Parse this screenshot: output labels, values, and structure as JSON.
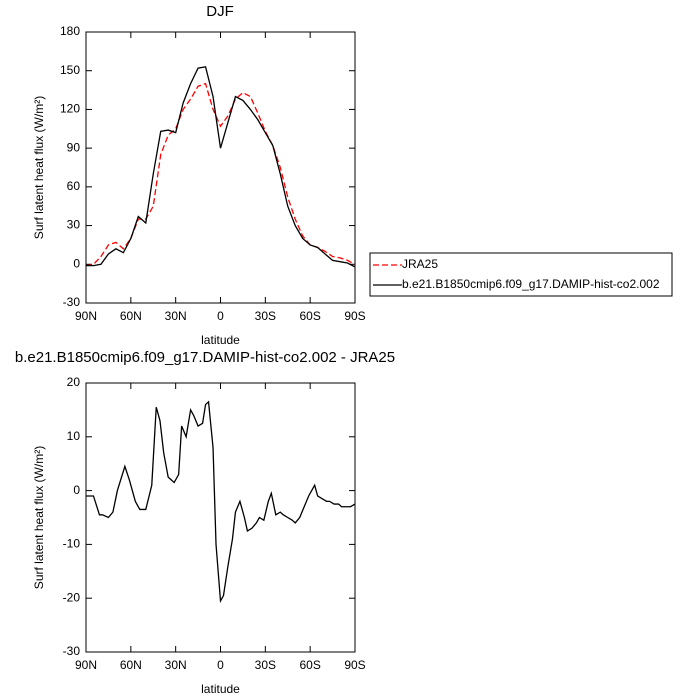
{
  "chart_data": [
    {
      "type": "line",
      "title": "DJF",
      "xlabel": "latitude",
      "ylabel": "Surf latent heat flux (W/m²)",
      "x": [
        90,
        85,
        80,
        75,
        70,
        65,
        60,
        55,
        50,
        45,
        40,
        35,
        30,
        25,
        20,
        15,
        10,
        5,
        0,
        -5,
        -10,
        -15,
        -20,
        -25,
        -30,
        -35,
        -40,
        -45,
        -50,
        -55,
        -60,
        -65,
        -70,
        -75,
        -80,
        -85,
        -90
      ],
      "series": [
        {
          "name": "JRA25",
          "color": "#ff0000",
          "style": "dashed",
          "values": [
            -1,
            0,
            6,
            15,
            17,
            12,
            20,
            35,
            35,
            45,
            85,
            100,
            105,
            120,
            128,
            138,
            140,
            120,
            107,
            115,
            128,
            133,
            130,
            117,
            103,
            92,
            75,
            52,
            35,
            22,
            15,
            13,
            10,
            6,
            5,
            3,
            0
          ]
        },
        {
          "name": "b.e21.B1850cmip6.f09_g17.DAMIP-hist-co2.002",
          "color": "#000000",
          "style": "solid",
          "values": [
            -1,
            -1,
            0,
            8,
            12,
            9,
            20,
            37,
            32,
            70,
            103,
            104,
            102,
            125,
            140,
            152,
            153,
            130,
            90,
            110,
            130,
            127,
            120,
            112,
            102,
            92,
            70,
            45,
            30,
            20,
            15,
            13,
            8,
            3,
            2,
            1,
            -2
          ]
        }
      ],
      "xlim": [
        90,
        -90
      ],
      "xticks": [
        {
          "value": 90,
          "label": "90N"
        },
        {
          "value": 60,
          "label": "60N"
        },
        {
          "value": 30,
          "label": "30N"
        },
        0,
        {
          "value": -30,
          "label": "30S"
        },
        {
          "value": -60,
          "label": "60S"
        },
        {
          "value": -90,
          "label": "90S"
        }
      ],
      "ylim": [
        -30,
        180
      ],
      "yticks": [
        -30,
        0,
        30,
        60,
        90,
        120,
        150,
        180
      ]
    },
    {
      "type": "line",
      "title": "b.e21.B1850cmip6.f09_g17.DAMIP-hist-co2.002 - JRA25",
      "xlabel": "latitude",
      "ylabel": "Surf latent heat flux (W/m²)",
      "x": [
        90,
        85,
        81,
        79,
        75,
        72,
        69,
        64,
        61,
        57,
        54,
        50,
        46,
        43,
        40.5,
        38,
        35,
        31,
        28,
        26,
        23,
        20,
        18,
        15,
        12,
        10,
        8,
        5,
        3,
        0,
        -2,
        -5,
        -8,
        -10,
        -13,
        -16,
        -18,
        -21,
        -24,
        -26,
        -29,
        -32,
        -34,
        -37,
        -40,
        -42,
        -45,
        -48,
        -50,
        -53,
        -56,
        -59,
        -63,
        -65,
        -68,
        -71,
        -73,
        -76,
        -79,
        -81,
        -84,
        -87,
        -90
      ],
      "series": [
        {
          "color": "#000000",
          "style": "solid",
          "values": [
            -1,
            -1,
            -4.5,
            -4.5,
            -5,
            -4,
            0,
            4.5,
            2,
            -2,
            -3.5,
            -3.5,
            1,
            15.5,
            13,
            7,
            2.5,
            1.5,
            3,
            12,
            10,
            15,
            14,
            12,
            12.5,
            16,
            16.5,
            8,
            -10,
            -20.5,
            -19.5,
            -14,
            -9,
            -4,
            -2,
            -5,
            -7.5,
            -7,
            -6,
            -5,
            -5.5,
            -2,
            -0.5,
            -4.5,
            -4,
            -4.5,
            -5,
            -5.5,
            -6,
            -5,
            -3,
            -1,
            1,
            -1,
            -1.5,
            -2,
            -2,
            -2.5,
            -2.5,
            -3,
            -3,
            -3,
            -2.5
          ]
        }
      ],
      "xlim": [
        90,
        -90
      ],
      "xticks": [
        {
          "value": 90,
          "label": "90N"
        },
        {
          "value": 60,
          "label": "60N"
        },
        {
          "value": 30,
          "label": "30N"
        },
        0,
        {
          "value": -30,
          "label": "30S"
        },
        {
          "value": -60,
          "label": "60S"
        },
        {
          "value": -90,
          "label": "90S"
        }
      ],
      "ylim": [
        -30,
        20
      ],
      "yticks": [
        -30,
        -20,
        -10,
        0,
        10,
        20
      ]
    }
  ]
}
